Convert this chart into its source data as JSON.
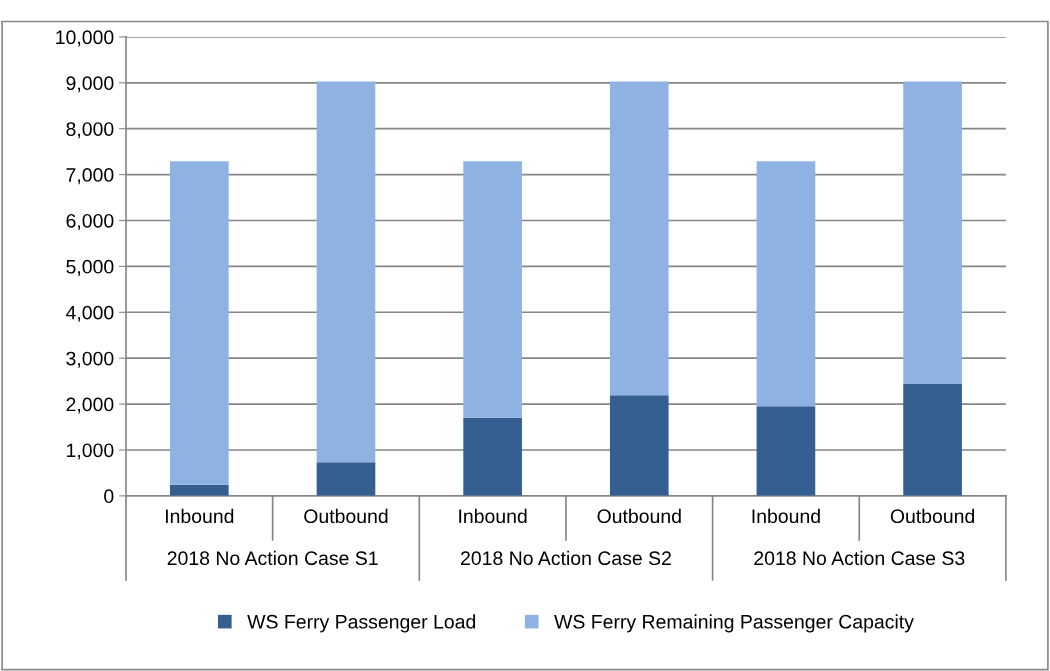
{
  "chart_data": {
    "type": "bar",
    "stacked": true,
    "categories": [
      "Inbound",
      "Outbound",
      "Inbound",
      "Outbound",
      "Inbound",
      "Outbound"
    ],
    "series": [
      {
        "name": "WS Ferry Passenger Load",
        "color": "#355f91",
        "values": [
          240,
          730,
          1700,
          2190,
          1950,
          2440
        ]
      },
      {
        "name": "WS Ferry Remaining Passenger Capacity",
        "color": "#8eb3e2",
        "values": [
          7050,
          8300,
          5590,
          6840,
          5340,
          6590
        ]
      }
    ],
    "annotations": [
      "2018 No Action Case S1",
      "2018 No Action Case S2",
      "2018 No Action Case S3"
    ],
    "ylim": [
      0,
      10000
    ],
    "yticks": [
      {
        "value": 0,
        "label": "0"
      },
      {
        "value": 1000,
        "label": "1,000"
      },
      {
        "value": 2000,
        "label": "2,000"
      },
      {
        "value": 3000,
        "label": "3,000"
      },
      {
        "value": 4000,
        "label": "4,000"
      },
      {
        "value": 5000,
        "label": "5,000"
      },
      {
        "value": 6000,
        "label": "6,000"
      },
      {
        "value": 7000,
        "label": "7,000"
      },
      {
        "value": 8000,
        "label": "8,000"
      },
      {
        "value": 9000,
        "label": "9,000"
      },
      {
        "value": 10000,
        "label": "10,000"
      }
    ],
    "grid": "y",
    "legend": "bottom"
  }
}
